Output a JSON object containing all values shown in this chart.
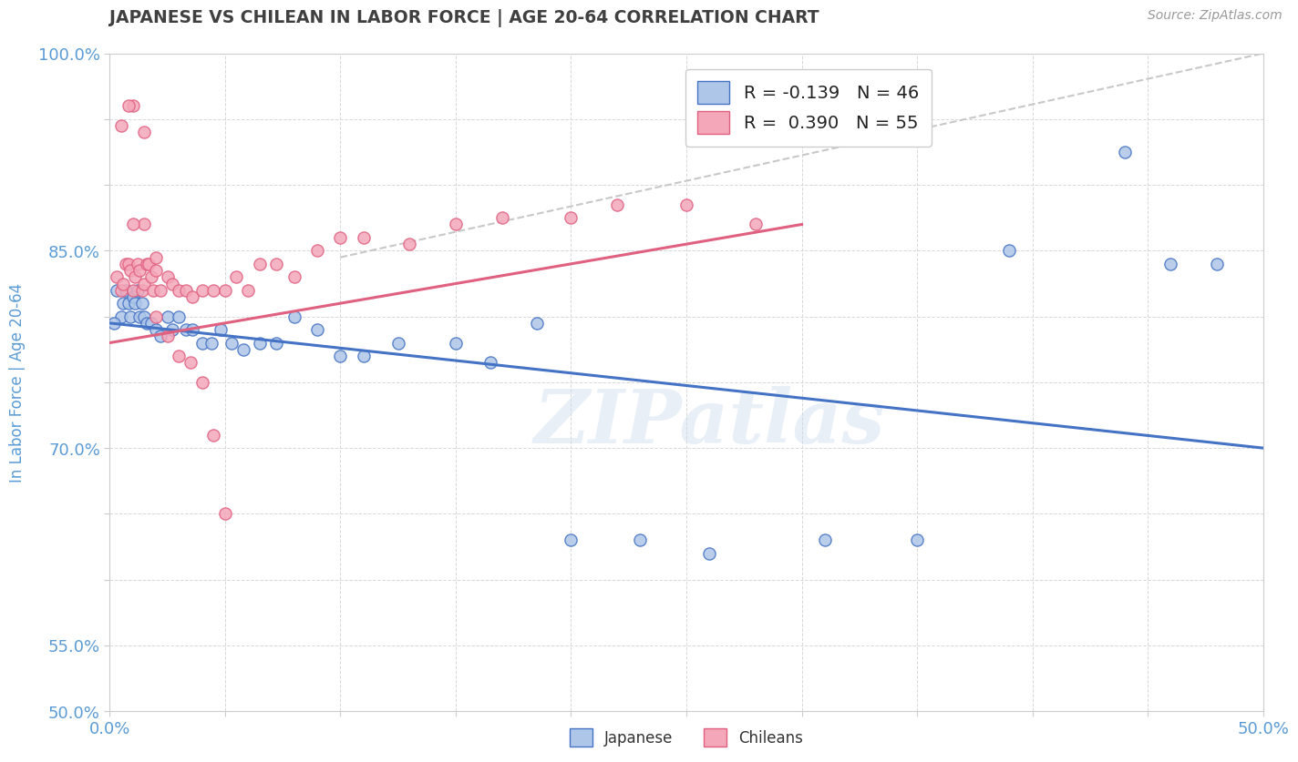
{
  "title": "JAPANESE VS CHILEAN IN LABOR FORCE | AGE 20-64 CORRELATION CHART",
  "source_text": "Source: ZipAtlas.com",
  "ylabel": "In Labor Force | Age 20-64",
  "xlim": [
    0.0,
    0.5
  ],
  "ylim": [
    0.5,
    1.0
  ],
  "xticks_all": [
    0.0,
    0.05,
    0.1,
    0.15,
    0.2,
    0.25,
    0.3,
    0.35,
    0.4,
    0.45,
    0.5
  ],
  "yticks_all": [
    0.5,
    0.55,
    0.6,
    0.65,
    0.7,
    0.75,
    0.8,
    0.85,
    0.9,
    0.95,
    1.0
  ],
  "xtick_show": [
    0.0,
    0.5
  ],
  "ytick_show": [
    0.55,
    0.7,
    0.85,
    1.0
  ],
  "legend_r1": "-0.139",
  "legend_n1": "46",
  "legend_r2": "0.390",
  "legend_n2": "55",
  "watermark": "ZIPatlas",
  "japanese_color": "#aec6e8",
  "chilean_color": "#f4a7b9",
  "line_japanese_color": "#4472c4",
  "line_chilean_color": "#e06080",
  "dashed_line_color": "#c8c8c8",
  "title_color": "#404040",
  "axis_label_color": "#5b9bd5",
  "tick_label_color": "#5b9bd5",
  "japanese_x": [
    0.003,
    0.005,
    0.006,
    0.007,
    0.008,
    0.009,
    0.01,
    0.011,
    0.012,
    0.013,
    0.014,
    0.015,
    0.016,
    0.018,
    0.02,
    0.022,
    0.025,
    0.027,
    0.03,
    0.033,
    0.036,
    0.04,
    0.044,
    0.048,
    0.053,
    0.058,
    0.065,
    0.072,
    0.08,
    0.09,
    0.1,
    0.11,
    0.125,
    0.15,
    0.165,
    0.185,
    0.2,
    0.23,
    0.26,
    0.31,
    0.35,
    0.39,
    0.44,
    0.46,
    0.48,
    0.002
  ],
  "japanese_y": [
    0.82,
    0.8,
    0.81,
    0.82,
    0.81,
    0.8,
    0.815,
    0.81,
    0.82,
    0.8,
    0.81,
    0.8,
    0.795,
    0.795,
    0.79,
    0.785,
    0.8,
    0.79,
    0.8,
    0.79,
    0.79,
    0.78,
    0.78,
    0.79,
    0.78,
    0.775,
    0.78,
    0.78,
    0.8,
    0.79,
    0.77,
    0.77,
    0.78,
    0.78,
    0.765,
    0.795,
    0.63,
    0.63,
    0.62,
    0.63,
    0.63,
    0.85,
    0.925,
    0.84,
    0.84,
    0.795
  ],
  "chilean_x": [
    0.003,
    0.005,
    0.006,
    0.007,
    0.008,
    0.009,
    0.01,
    0.011,
    0.012,
    0.013,
    0.014,
    0.015,
    0.016,
    0.017,
    0.018,
    0.019,
    0.02,
    0.022,
    0.025,
    0.027,
    0.03,
    0.033,
    0.036,
    0.04,
    0.045,
    0.05,
    0.055,
    0.06,
    0.065,
    0.072,
    0.08,
    0.09,
    0.1,
    0.11,
    0.13,
    0.15,
    0.17,
    0.2,
    0.22,
    0.25,
    0.28,
    0.01,
    0.015,
    0.02,
    0.025,
    0.03,
    0.035,
    0.04,
    0.045,
    0.05,
    0.005,
    0.008,
    0.01,
    0.015,
    0.02
  ],
  "chilean_y": [
    0.83,
    0.82,
    0.825,
    0.84,
    0.84,
    0.835,
    0.82,
    0.83,
    0.84,
    0.835,
    0.82,
    0.825,
    0.84,
    0.84,
    0.83,
    0.82,
    0.835,
    0.82,
    0.83,
    0.825,
    0.82,
    0.82,
    0.815,
    0.82,
    0.82,
    0.82,
    0.83,
    0.82,
    0.84,
    0.84,
    0.83,
    0.85,
    0.86,
    0.86,
    0.855,
    0.87,
    0.875,
    0.875,
    0.885,
    0.885,
    0.87,
    0.96,
    0.87,
    0.845,
    0.785,
    0.77,
    0.765,
    0.75,
    0.71,
    0.65,
    0.945,
    0.96,
    0.87,
    0.94,
    0.8
  ],
  "blue_line_x0": 0.0,
  "blue_line_y0": 0.795,
  "blue_line_x1": 0.5,
  "blue_line_y1": 0.7,
  "pink_line_x0": 0.0,
  "pink_line_y0": 0.78,
  "pink_line_x1": 0.3,
  "pink_line_y1": 0.87,
  "dash_line_x0": 0.1,
  "dash_line_y0": 0.845,
  "dash_line_x1": 0.5,
  "dash_line_y1": 1.0
}
